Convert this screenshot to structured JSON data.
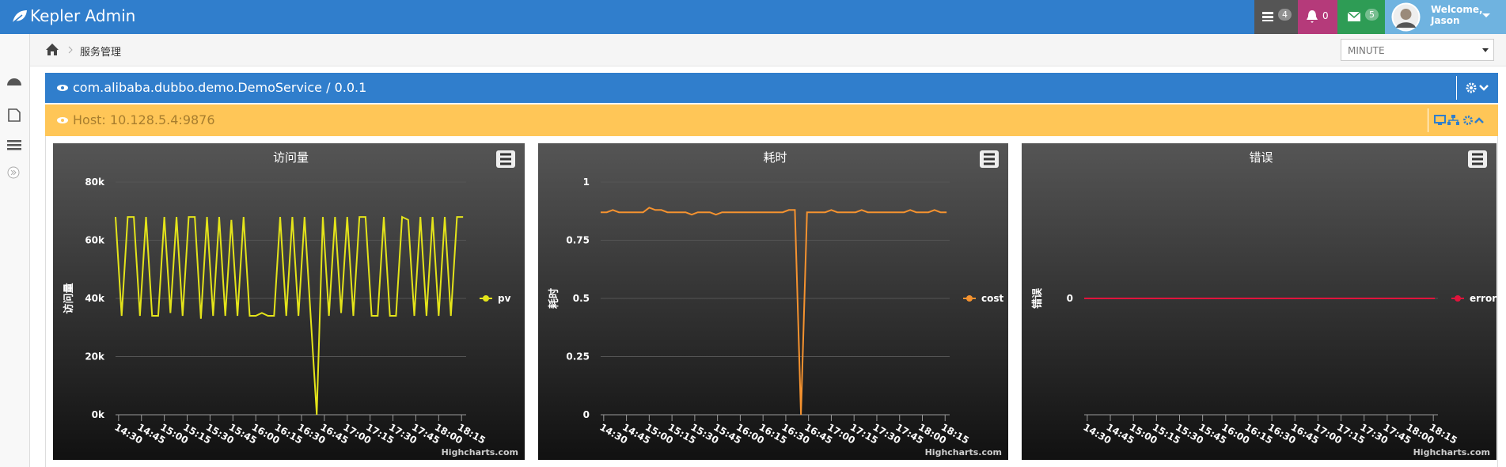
{
  "header": {
    "brand": "Kepler Admin",
    "badges": [
      4,
      0,
      5
    ],
    "welcome": "Welcome,",
    "user": "Jason"
  },
  "breadcrumb": {
    "current": "服务管理"
  },
  "period_select": "MINUTE",
  "service_panel": {
    "title": "com.alibaba.dubbo.demo.DemoService / 0.0.1"
  },
  "host_panel": {
    "title": "Host: 10.128.5.4:9876"
  },
  "charts": [
    {
      "type": "line",
      "title": "访问量",
      "y_label": "访问量",
      "credits": "Highcharts.com",
      "grid": true,
      "x": [
        -2,
        2,
        6,
        10,
        14,
        18,
        22,
        26,
        30,
        34,
        38,
        42,
        46,
        50,
        54,
        58,
        62,
        66,
        70,
        74,
        78,
        82,
        86,
        90,
        94,
        98,
        102,
        106,
        110,
        114,
        118,
        122,
        126,
        130,
        134,
        138,
        142,
        146,
        150,
        154,
        158,
        162,
        166,
        170,
        174,
        178,
        182,
        186,
        190,
        194,
        198,
        202,
        206,
        210,
        214,
        218,
        222,
        226
      ],
      "xlim": [
        -2,
        228
      ],
      "xticks": [
        {
          "value": 0,
          "label": "14:30"
        },
        {
          "value": 15,
          "label": "14:45"
        },
        {
          "value": 30,
          "label": "15:00"
        },
        {
          "value": 45,
          "label": "15:15"
        },
        {
          "value": 60,
          "label": "15:30"
        },
        {
          "value": 75,
          "label": "15:45"
        },
        {
          "value": 90,
          "label": "16:00"
        },
        {
          "value": 105,
          "label": "16:15"
        },
        {
          "value": 120,
          "label": "16:30"
        },
        {
          "value": 135,
          "label": "16:45"
        },
        {
          "value": 150,
          "label": "17:00"
        },
        {
          "value": 165,
          "label": "17:15"
        },
        {
          "value": 180,
          "label": "17:30"
        },
        {
          "value": 195,
          "label": "17:45"
        },
        {
          "value": 210,
          "label": "18:00"
        },
        {
          "value": 225,
          "label": "18:15"
        }
      ],
      "ylim": [
        0,
        80000
      ],
      "yticks": [
        {
          "value": 0,
          "label": "0k"
        },
        {
          "value": 20000,
          "label": "20k"
        },
        {
          "value": 40000,
          "label": "40k"
        },
        {
          "value": 60000,
          "label": "60k"
        },
        {
          "value": 80000,
          "label": "80k"
        }
      ],
      "series": [
        {
          "name": "pv",
          "color": "#e4e41a",
          "values": [
            68000,
            34000,
            68000,
            68000,
            34000,
            68000,
            34000,
            34000,
            68000,
            35000,
            68000,
            34000,
            68000,
            68000,
            33000,
            68000,
            34000,
            68000,
            34000,
            67000,
            34000,
            68000,
            34000,
            34000,
            35000,
            34000,
            34000,
            68000,
            34000,
            68000,
            34000,
            68000,
            34000,
            0,
            68000,
            34000,
            68000,
            35000,
            68000,
            34000,
            68000,
            68000,
            34000,
            34000,
            68000,
            34000,
            34000,
            68000,
            67000,
            34000,
            68000,
            34000,
            68000,
            34000,
            68000,
            34000,
            68000,
            68000
          ]
        }
      ]
    },
    {
      "type": "line",
      "title": "耗时",
      "y_label": "耗时",
      "credits": "Highcharts.com",
      "grid": true,
      "x": [
        -2,
        2,
        6,
        10,
        14,
        18,
        22,
        26,
        30,
        34,
        38,
        42,
        46,
        50,
        54,
        58,
        62,
        66,
        70,
        74,
        78,
        82,
        86,
        90,
        94,
        98,
        102,
        106,
        110,
        114,
        118,
        122,
        126,
        130,
        134,
        138,
        142,
        146,
        150,
        154,
        158,
        162,
        166,
        170,
        174,
        178,
        182,
        186,
        190,
        194,
        198,
        202,
        206,
        210,
        214,
        218,
        222,
        226
      ],
      "xlim": [
        -2,
        228
      ],
      "xticks": [
        {
          "value": 0,
          "label": "14:30"
        },
        {
          "value": 15,
          "label": "14:45"
        },
        {
          "value": 30,
          "label": "15:00"
        },
        {
          "value": 45,
          "label": "15:15"
        },
        {
          "value": 60,
          "label": "15:30"
        },
        {
          "value": 75,
          "label": "15:45"
        },
        {
          "value": 90,
          "label": "16:00"
        },
        {
          "value": 105,
          "label": "16:15"
        },
        {
          "value": 120,
          "label": "16:30"
        },
        {
          "value": 135,
          "label": "16:45"
        },
        {
          "value": 150,
          "label": "17:00"
        },
        {
          "value": 165,
          "label": "17:15"
        },
        {
          "value": 180,
          "label": "17:30"
        },
        {
          "value": 195,
          "label": "17:45"
        },
        {
          "value": 210,
          "label": "18:00"
        },
        {
          "value": 225,
          "label": "18:15"
        }
      ],
      "ylim": [
        0,
        1
      ],
      "yticks": [
        0,
        0.25,
        0.5,
        0.75,
        1
      ],
      "series": [
        {
          "name": "cost",
          "color": "#f5922f",
          "values": [
            0.87,
            0.87,
            0.88,
            0.87,
            0.87,
            0.87,
            0.87,
            0.87,
            0.89,
            0.88,
            0.88,
            0.87,
            0.87,
            0.87,
            0.87,
            0.86,
            0.87,
            0.87,
            0.87,
            0.86,
            0.87,
            0.87,
            0.87,
            0.87,
            0.87,
            0.87,
            0.87,
            0.87,
            0.87,
            0.87,
            0.87,
            0.88,
            0.88,
            0,
            0.87,
            0.87,
            0.87,
            0.87,
            0.88,
            0.87,
            0.87,
            0.87,
            0.87,
            0.88,
            0.87,
            0.87,
            0.87,
            0.87,
            0.87,
            0.87,
            0.87,
            0.88,
            0.87,
            0.87,
            0.87,
            0.88,
            0.87,
            0.87
          ]
        }
      ]
    },
    {
      "type": "line",
      "title": "错误",
      "y_label": "错误",
      "credits": "Highcharts.com",
      "grid": true,
      "x": [
        -2,
        2,
        6,
        10,
        14,
        18,
        22,
        26,
        30,
        34,
        38,
        42,
        46,
        50,
        54,
        58,
        62,
        66,
        70,
        74,
        78,
        82,
        86,
        90,
        94,
        98,
        102,
        106,
        110,
        114,
        118,
        122,
        126,
        130,
        134,
        138,
        142,
        146,
        150,
        154,
        158,
        162,
        166,
        170,
        174,
        178,
        182,
        186,
        190,
        194,
        198,
        202,
        206,
        210,
        214,
        218,
        222,
        226
      ],
      "xlim": [
        -2,
        228
      ],
      "xticks": [
        {
          "value": 0,
          "label": "14:30"
        },
        {
          "value": 15,
          "label": "14:45"
        },
        {
          "value": 30,
          "label": "15:00"
        },
        {
          "value": 45,
          "label": "15:15"
        },
        {
          "value": 60,
          "label": "15:30"
        },
        {
          "value": 75,
          "label": "15:45"
        },
        {
          "value": 90,
          "label": "16:00"
        },
        {
          "value": 105,
          "label": "16:15"
        },
        {
          "value": 120,
          "label": "16:30"
        },
        {
          "value": 135,
          "label": "16:45"
        },
        {
          "value": 150,
          "label": "17:00"
        },
        {
          "value": 165,
          "label": "17:15"
        },
        {
          "value": 180,
          "label": "17:30"
        },
        {
          "value": 195,
          "label": "17:45"
        },
        {
          "value": 210,
          "label": "18:00"
        },
        {
          "value": 225,
          "label": "18:15"
        }
      ],
      "ylim": [
        -1,
        1
      ],
      "yticks": [
        0
      ],
      "series": [
        {
          "name": "error",
          "color": "#e0143c",
          "values": [
            0,
            0,
            0,
            0,
            0,
            0,
            0,
            0,
            0,
            0,
            0,
            0,
            0,
            0,
            0,
            0,
            0,
            0,
            0,
            0,
            0,
            0,
            0,
            0,
            0,
            0,
            0,
            0,
            0,
            0,
            0,
            0,
            0,
            0,
            0,
            0,
            0,
            0,
            0,
            0,
            0,
            0,
            0,
            0,
            0,
            0,
            0,
            0,
            0,
            0,
            0,
            0,
            0,
            0,
            0,
            0,
            0,
            0
          ]
        }
      ]
    }
  ]
}
